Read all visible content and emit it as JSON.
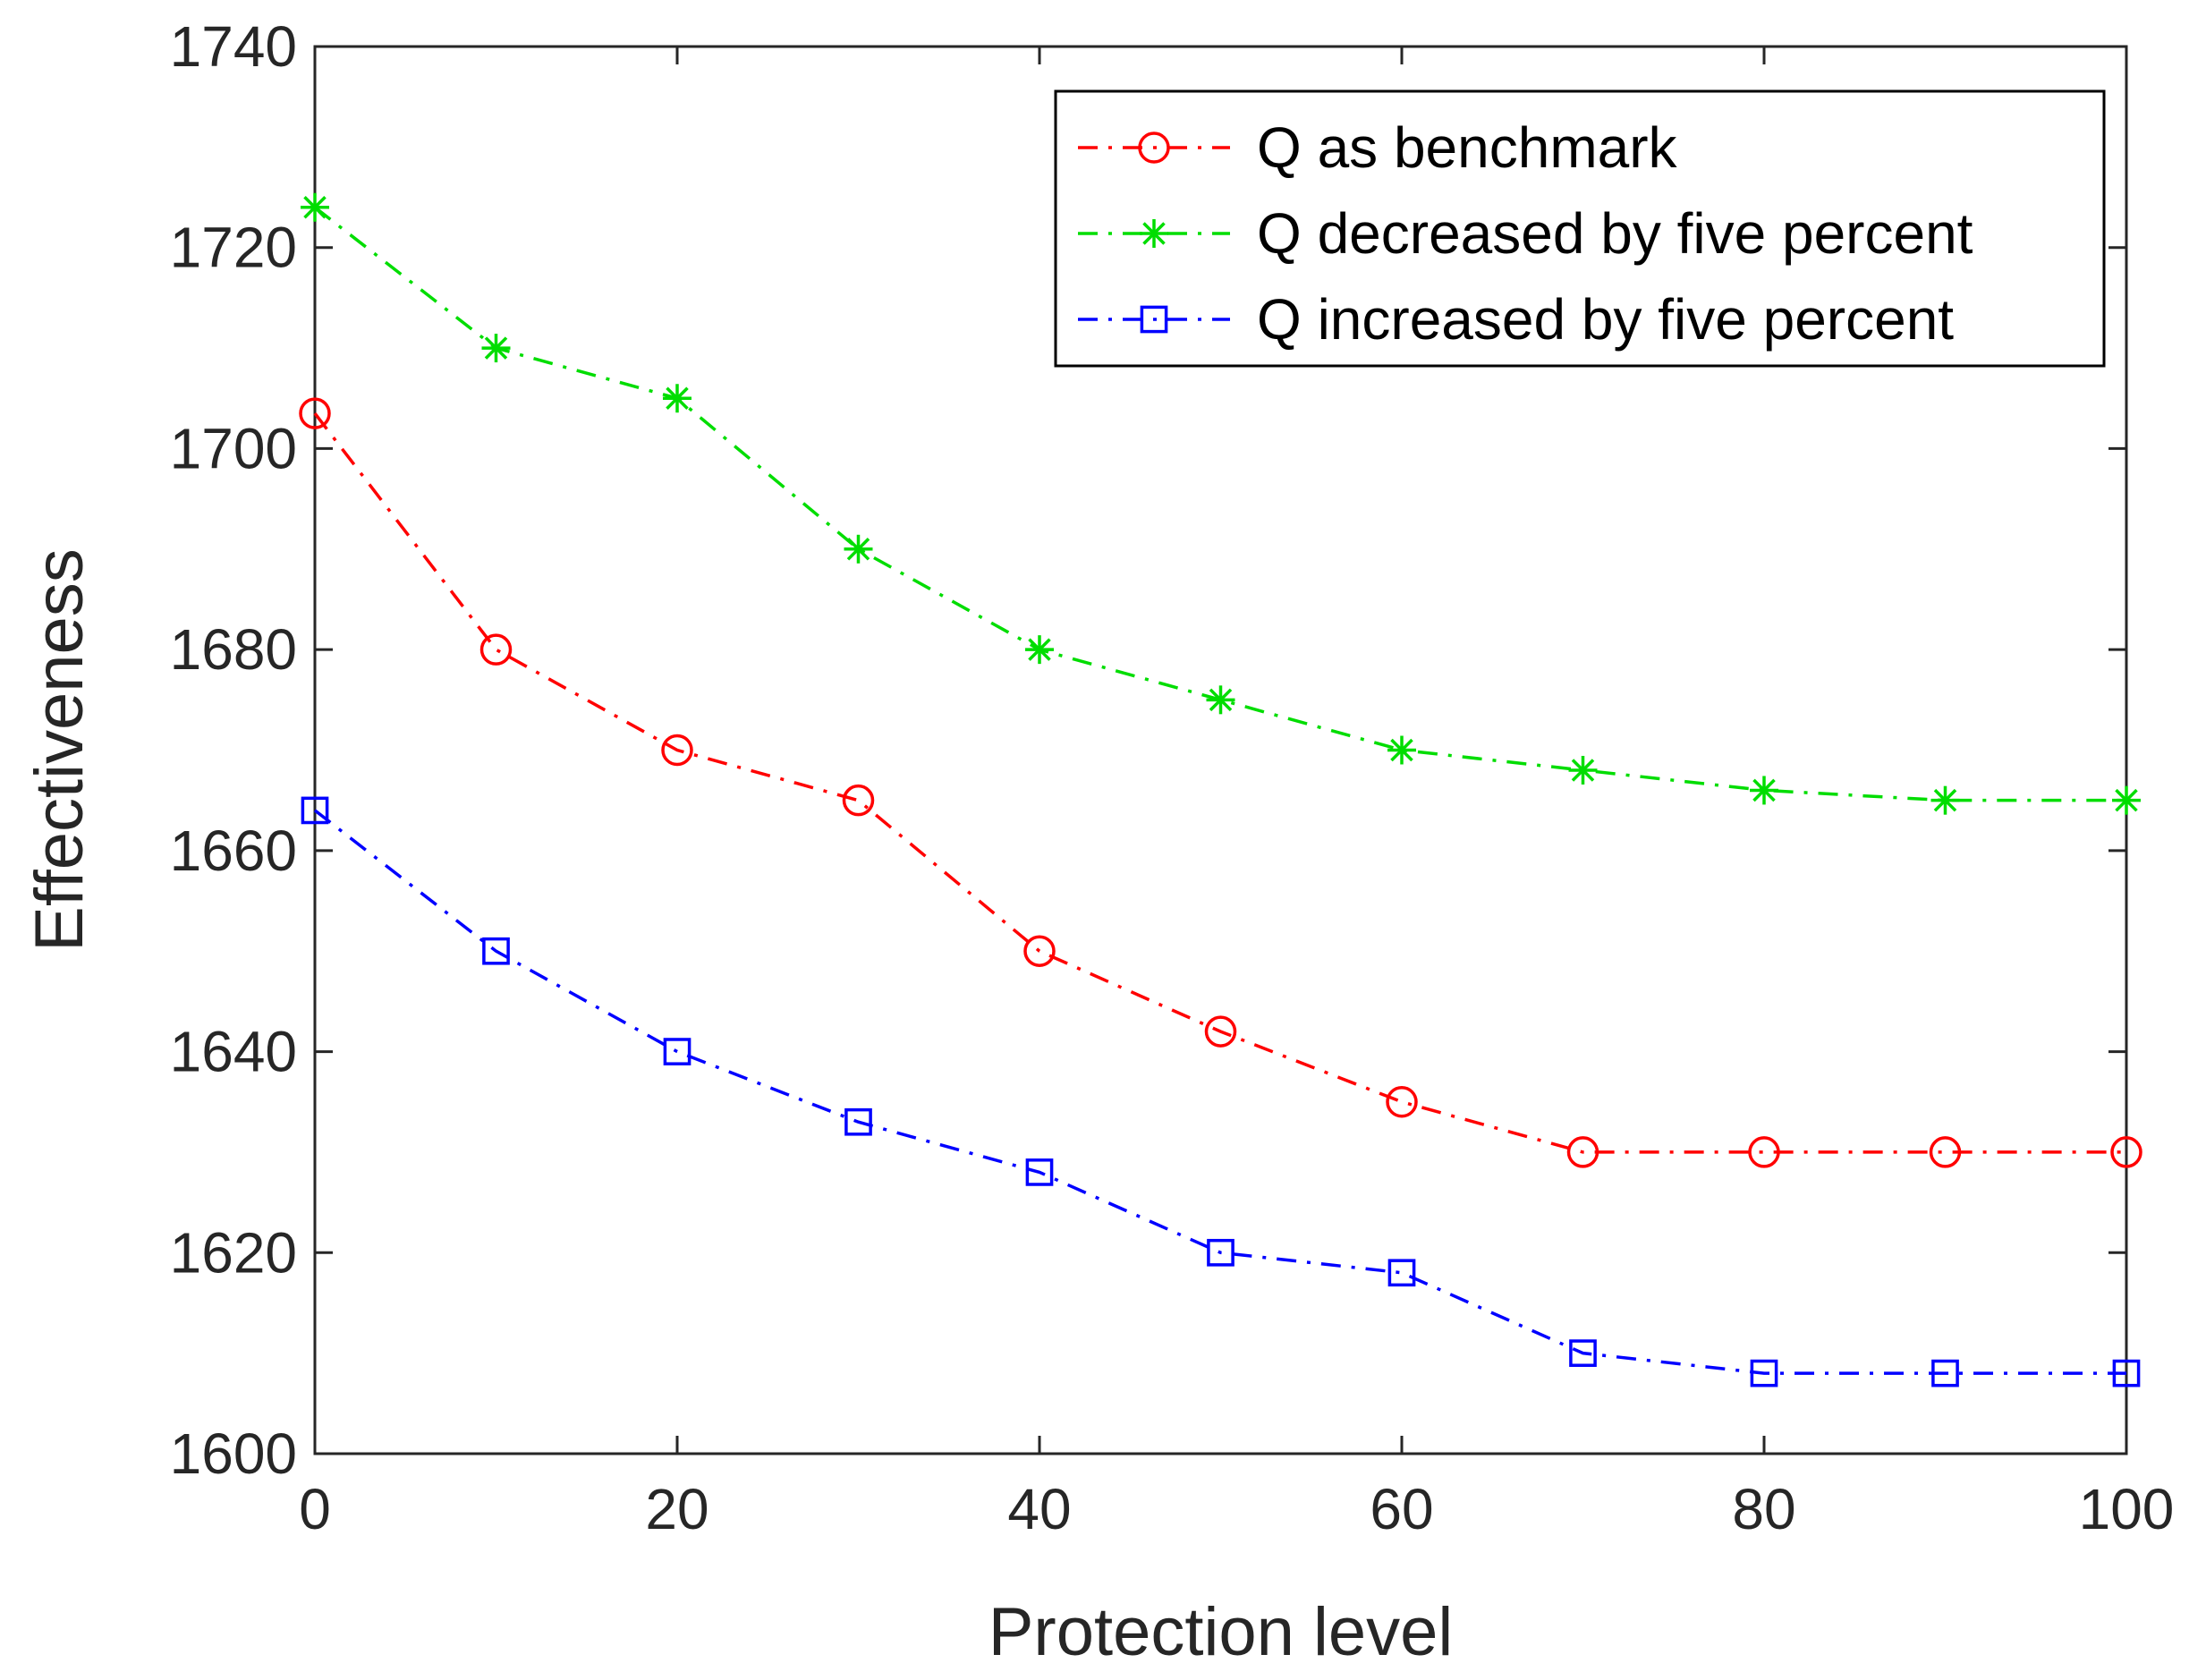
{
  "chart_data": {
    "type": "line",
    "xlabel": "Protection level",
    "ylabel": "Effectiveness",
    "xlim": [
      0,
      100
    ],
    "ylim": [
      1600,
      1740
    ],
    "xticks": [
      0,
      20,
      40,
      60,
      80,
      100
    ],
    "yticks": [
      1600,
      1620,
      1640,
      1660,
      1680,
      1700,
      1720,
      1740
    ],
    "grid": false,
    "legend_position": "top-right",
    "x": [
      0,
      10,
      20,
      30,
      40,
      50,
      60,
      70,
      80,
      90,
      100
    ],
    "series": [
      {
        "name": "Q as benchmark",
        "color": "#ff0000",
        "marker": "circle",
        "line_style": "dash-dot",
        "values": [
          1703.5,
          1680,
          1670,
          1665,
          1650,
          1642,
          1635,
          1630,
          1630,
          1630,
          1630
        ]
      },
      {
        "name": "Q decreased by five percent",
        "color": "#00dd00",
        "marker": "asterisk",
        "line_style": "dash-dot",
        "values": [
          1724,
          1710,
          1705,
          1690,
          1680,
          1675,
          1670,
          1668,
          1666,
          1665,
          1665
        ]
      },
      {
        "name": "Q increased by five percent",
        "color": "#0000ff",
        "marker": "square",
        "line_style": "dash-dot",
        "values": [
          1664,
          1650,
          1640,
          1633,
          1628,
          1620,
          1618,
          1610,
          1608,
          1608,
          1608
        ]
      }
    ]
  }
}
